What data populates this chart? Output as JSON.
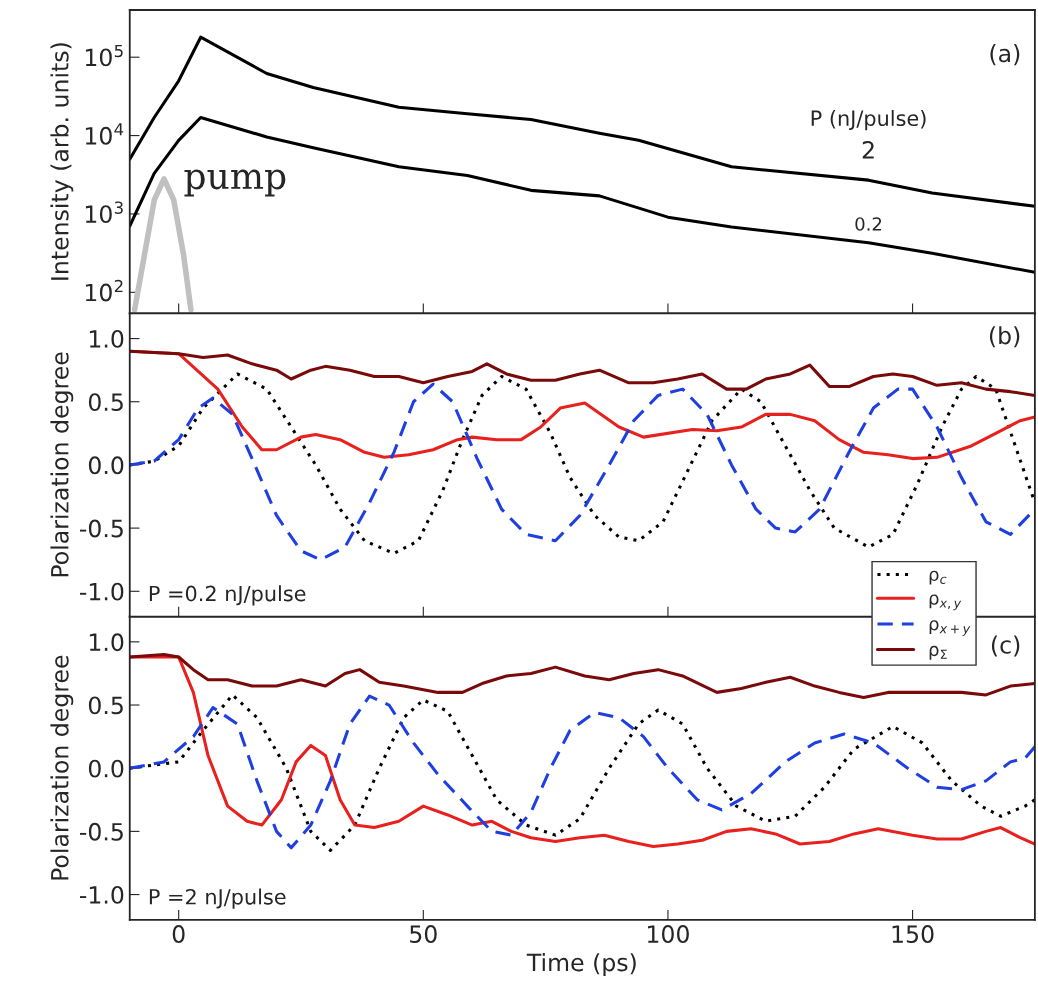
{
  "chart_data": [
    {
      "type": "line",
      "ylabel": "Intensity (arb. units)",
      "legend_title": "P (nJ/pulse)",
      "annotations": [
        "(a)"
      ],
      "log": "y",
      "xlim": [
        -10,
        175
      ],
      "xticks": [
        0,
        50,
        100,
        150
      ],
      "ylim": [
        54,
        400000
      ],
      "yticks": [
        {
          "value": 100,
          "label": "10$^{2}$"
        },
        {
          "value": 1000,
          "label": "10$^{3}$"
        },
        {
          "value": 10000,
          "label": "10$^{4}$"
        },
        {
          "value": 100000,
          "label": "10$^{5}$"
        }
      ],
      "tick_labels": "y",
      "legend": false,
      "series": [
        {
          "name": "2",
          "color": "#000000",
          "x": [
            -10,
            -5,
            0,
            4.5,
            18,
            27.5,
            45,
            59,
            72,
            86,
            94,
            113,
            141,
            154,
            175
          ],
          "values": [
            5000,
            17000,
            50000,
            180000,
            62000,
            41000,
            23000,
            19000,
            16000,
            10700,
            8700,
            4000,
            2700,
            1850,
            1250
          ]
        },
        {
          "name": "0.2",
          "color": "#000000",
          "x": [
            -10,
            -5,
            0,
            4.5,
            18,
            27.5,
            45,
            59,
            72,
            86,
            100,
            113,
            141,
            154,
            175
          ],
          "values": [
            700,
            3300,
            8700,
            17000,
            9600,
            7000,
            4000,
            3100,
            2000,
            1700,
            910,
            680,
            430,
            315,
            180
          ]
        },
        {
          "name": "pump",
          "color": "#c0c0c0",
          "x": [
            -9,
            -7,
            -5,
            -3,
            -1,
            1,
            2.5
          ],
          "values": [
            60,
            300,
            1500,
            2800,
            1500,
            300,
            60
          ]
        }
      ]
    },
    {
      "type": "line",
      "ylabel": "Polarization degree",
      "annotations": [
        "(b)",
        "P =0.2 nJ/pulse"
      ],
      "xlim": [
        -10,
        175
      ],
      "xticks": [
        0,
        50,
        100,
        150
      ],
      "ylim": [
        -1.2,
        1.2
      ],
      "yticks": [
        {
          "value": -1,
          "label": "-1.0"
        },
        {
          "value": -0.5,
          "label": "-0.5"
        },
        {
          "value": 0,
          "label": "0.0"
        },
        {
          "value": 0.5,
          "label": "0.5"
        },
        {
          "value": 1,
          "label": "1.0"
        }
      ],
      "tick_labels": "y",
      "legend": "bottom right",
      "series": [
        {
          "name": "ρ$_{c}$",
          "color": "#000000",
          "line_style": "dotted",
          "x": [
            -10,
            -5,
            0,
            5,
            12,
            18,
            23,
            28,
            33,
            38,
            44,
            49,
            54,
            58,
            62,
            66,
            71,
            76,
            80,
            85,
            90,
            94,
            99,
            104,
            109,
            115,
            119,
            124,
            129,
            134,
            141,
            146,
            151,
            156,
            160,
            163,
            167,
            171,
            175
          ],
          "values": [
            0,
            0.03,
            0.15,
            0.45,
            0.72,
            0.6,
            0.3,
            0,
            -0.35,
            -0.6,
            -0.7,
            -0.6,
            -0.2,
            0.2,
            0.55,
            0.7,
            0.6,
            0.25,
            -0.1,
            -0.4,
            -0.57,
            -0.6,
            -0.45,
            -0.05,
            0.35,
            0.6,
            0.5,
            0.15,
            -0.2,
            -0.5,
            -0.65,
            -0.55,
            -0.15,
            0.3,
            0.6,
            0.7,
            0.6,
            0.15,
            -0.3
          ]
        },
        {
          "name": "ρ$_{x,y}$",
          "color": "#e8201e",
          "line_style": "solid",
          "x": [
            -10,
            0,
            8,
            13,
            17,
            20,
            25,
            28,
            33,
            38,
            42,
            47,
            52,
            57,
            60,
            65,
            70,
            74,
            78,
            83,
            90,
            95,
            105,
            110,
            115,
            120,
            125,
            130,
            135,
            140,
            145,
            150,
            155,
            162,
            167,
            172,
            175
          ],
          "values": [
            0.9,
            0.88,
            0.6,
            0.3,
            0.12,
            0.12,
            0.22,
            0.24,
            0.2,
            0.1,
            0.06,
            0.08,
            0.12,
            0.2,
            0.22,
            0.2,
            0.2,
            0.3,
            0.45,
            0.49,
            0.3,
            0.22,
            0.28,
            0.27,
            0.3,
            0.4,
            0.4,
            0.35,
            0.2,
            0.1,
            0.08,
            0.05,
            0.06,
            0.15,
            0.25,
            0.35,
            0.38
          ]
        },
        {
          "name": "ρ$_{x+y}$",
          "color": "#1f3fe0",
          "line_style": "dashed",
          "x": [
            -10,
            -5,
            0,
            4,
            7,
            11,
            15,
            20,
            25,
            29,
            34,
            39,
            44,
            48,
            52,
            56,
            61,
            66,
            71,
            77,
            82,
            88,
            93,
            98,
            103,
            108,
            113,
            118,
            122,
            126,
            131,
            137,
            142,
            147,
            150,
            155,
            160,
            165,
            170,
            175
          ],
          "values": [
            0,
            0.03,
            0.2,
            0.45,
            0.53,
            0.4,
            0.05,
            -0.4,
            -0.68,
            -0.75,
            -0.65,
            -0.3,
            0.1,
            0.5,
            0.64,
            0.5,
            0.05,
            -0.35,
            -0.55,
            -0.6,
            -0.4,
            0,
            0.35,
            0.55,
            0.6,
            0.4,
            0,
            -0.35,
            -0.5,
            -0.53,
            -0.35,
            0.1,
            0.45,
            0.6,
            0.6,
            0.3,
            -0.1,
            -0.45,
            -0.55,
            -0.35
          ]
        },
        {
          "name": "ρ$_{Σ}$",
          "color": "#7a0a0a",
          "line_style": "solid",
          "x": [
            -10,
            0,
            5,
            10,
            15,
            20,
            23,
            27,
            30,
            35,
            40,
            45,
            50,
            55,
            60,
            63,
            67,
            72,
            77,
            82,
            86,
            92,
            97,
            102,
            107,
            112,
            116,
            120,
            125,
            129,
            133,
            137,
            142,
            146,
            150,
            155,
            160,
            165,
            170,
            175
          ],
          "values": [
            0.9,
            0.88,
            0.85,
            0.87,
            0.8,
            0.75,
            0.68,
            0.75,
            0.78,
            0.75,
            0.7,
            0.7,
            0.65,
            0.7,
            0.74,
            0.8,
            0.72,
            0.67,
            0.67,
            0.72,
            0.75,
            0.65,
            0.65,
            0.68,
            0.72,
            0.6,
            0.6,
            0.68,
            0.72,
            0.79,
            0.62,
            0.62,
            0.7,
            0.72,
            0.7,
            0.63,
            0.65,
            0.6,
            0.58,
            0.55
          ]
        }
      ]
    },
    {
      "type": "line",
      "ylabel": "Polarization degree",
      "xlabel": "Time (ps)",
      "annotations": [
        "(c)",
        "P =2 nJ/pulse"
      ],
      "xlim": [
        -10,
        175
      ],
      "xticks": [
        0,
        50,
        100,
        150
      ],
      "ylim": [
        -1.2,
        1.2
      ],
      "yticks": [
        {
          "value": -1,
          "label": "-1.0"
        },
        {
          "value": -0.5,
          "label": "-0.5"
        },
        {
          "value": 0,
          "label": "0.0"
        },
        {
          "value": 0.5,
          "label": "0.5"
        },
        {
          "value": 1,
          "label": "1.0"
        }
      ],
      "series": [
        {
          "color": "#000000",
          "line_style": "dotted",
          "x": [
            -10,
            0,
            5,
            11,
            16,
            22,
            27,
            31,
            36,
            41,
            46,
            50,
            55,
            60,
            65,
            71,
            77,
            82,
            88,
            94,
            98,
            103,
            108,
            114,
            120,
            126,
            132,
            138,
            146,
            152,
            158,
            164,
            168,
            173,
            175
          ],
          "values": [
            0,
            0.05,
            0.3,
            0.58,
            0.4,
            0,
            -0.5,
            -0.65,
            -0.45,
            0,
            0.4,
            0.54,
            0.45,
            0.1,
            -0.25,
            -0.45,
            -0.53,
            -0.4,
            0,
            0.35,
            0.46,
            0.35,
            0,
            -0.3,
            -0.42,
            -0.38,
            -0.15,
            0.15,
            0.33,
            0.2,
            -0.1,
            -0.3,
            -0.38,
            -0.3,
            -0.25
          ]
        },
        {
          "color": "#e8201e",
          "line_style": "solid",
          "x": [
            -10,
            0,
            3,
            6,
            10,
            14,
            17,
            21,
            24,
            27,
            30,
            33,
            36,
            40,
            45,
            50,
            55,
            60,
            64,
            68,
            72,
            77,
            82,
            87,
            92,
            97,
            102,
            107,
            112,
            117,
            122,
            127,
            133,
            138,
            143,
            150,
            155,
            160,
            165,
            168,
            172,
            175
          ],
          "values": [
            0.88,
            0.88,
            0.6,
            0.1,
            -0.3,
            -0.42,
            -0.45,
            -0.25,
            0.05,
            0.18,
            0.1,
            -0.25,
            -0.45,
            -0.47,
            -0.42,
            -0.3,
            -0.37,
            -0.45,
            -0.42,
            -0.5,
            -0.55,
            -0.58,
            -0.55,
            -0.53,
            -0.58,
            -0.62,
            -0.6,
            -0.57,
            -0.5,
            -0.48,
            -0.52,
            -0.6,
            -0.58,
            -0.52,
            -0.48,
            -0.53,
            -0.56,
            -0.56,
            -0.5,
            -0.47,
            -0.55,
            -0.6
          ]
        },
        {
          "color": "#1f3fe0",
          "line_style": "dashed",
          "x": [
            -10,
            -3,
            3,
            7,
            12,
            16,
            20,
            23,
            27,
            31,
            35,
            39,
            43,
            48,
            53,
            59,
            64,
            68,
            72,
            76,
            80,
            85,
            90,
            95,
            100,
            106,
            111,
            117,
            124,
            130,
            136,
            142,
            149,
            155,
            160,
            165,
            170,
            173,
            175
          ],
          "values": [
            0,
            0.05,
            0.25,
            0.48,
            0.35,
            -0.1,
            -0.5,
            -0.63,
            -0.45,
            -0.1,
            0.35,
            0.57,
            0.5,
            0.2,
            -0.05,
            -0.3,
            -0.5,
            -0.53,
            -0.35,
            0,
            0.3,
            0.44,
            0.4,
            0.25,
            0,
            -0.25,
            -0.33,
            -0.2,
            0.05,
            0.2,
            0.27,
            0.2,
            0,
            -0.15,
            -0.17,
            -0.1,
            0.05,
            0.08,
            0.17
          ]
        },
        {
          "color": "#7a0a0a",
          "line_style": "solid",
          "x": [
            -10,
            -3,
            0,
            3,
            6,
            10,
            15,
            20,
            25,
            30,
            34,
            37,
            41,
            46,
            53,
            58,
            62,
            67,
            72,
            77,
            83,
            88,
            93,
            98,
            103,
            110,
            115,
            120,
            125,
            130,
            135,
            140,
            145,
            150,
            155,
            160,
            165,
            170,
            175
          ],
          "values": [
            0.88,
            0.9,
            0.88,
            0.78,
            0.7,
            0.7,
            0.65,
            0.65,
            0.7,
            0.65,
            0.75,
            0.78,
            0.68,
            0.65,
            0.6,
            0.6,
            0.67,
            0.73,
            0.75,
            0.8,
            0.73,
            0.7,
            0.75,
            0.78,
            0.73,
            0.6,
            0.63,
            0.68,
            0.72,
            0.65,
            0.6,
            0.56,
            0.6,
            0.6,
            0.6,
            0.6,
            0.58,
            0.65,
            0.67
          ]
        }
      ]
    }
  ]
}
